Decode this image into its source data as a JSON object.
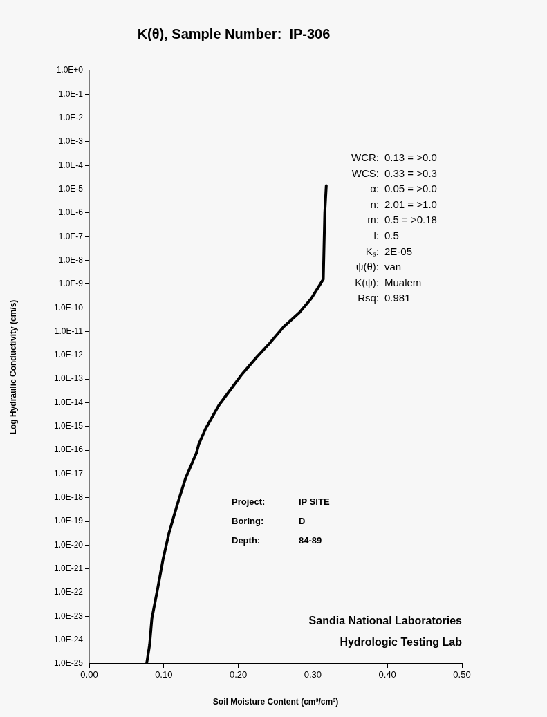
{
  "chart_data": {
    "type": "line",
    "title": "K(θ), Sample Number:  IP-306",
    "xlabel": "Soil Moisture Content (cm³/cm³)",
    "ylabel": "Log Hydraulic Conductivity (cm/s)",
    "x": [
      0.318,
      0.316,
      0.314,
      0.31,
      0.298,
      0.282,
      0.261,
      0.242,
      0.224,
      0.205,
      0.193,
      0.174,
      0.156,
      0.147,
      0.144,
      0.129,
      0.118,
      0.107,
      0.099,
      0.092,
      0.084,
      0.081,
      0.077
    ],
    "series": [
      {
        "color": "#000000",
        "values": [
          1.4e-05,
          1e-06,
          1.6e-09,
          1e-09,
          2.5e-10,
          6.3e-11,
          1.6e-11,
          3.2e-12,
          7.9e-13,
          1.6e-13,
          5e-14,
          7.9e-15,
          7.9e-16,
          1.8e-16,
          7.9e-17,
          6.3e-18,
          5e-19,
          3.2e-20,
          2.5e-21,
          1.6e-22,
          7.9e-24,
          6.3e-25,
          1e-25
        ]
      }
    ],
    "log": true,
    "grid": false,
    "legend": false,
    "marker": "none",
    "line_style": "solid",
    "xlim": [
      0,
      0.5
    ],
    "xticks": [
      {
        "value": 0,
        "label": "0.00"
      },
      {
        "value": 0.1,
        "label": "0.10"
      },
      {
        "value": 0.2,
        "label": "0.20"
      },
      {
        "value": 0.3,
        "label": "0.30"
      },
      {
        "value": 0.4,
        "label": "0.40"
      },
      {
        "value": 0.5,
        "label": "0.50"
      }
    ],
    "ylim": [
      1e-25,
      1
    ],
    "yticks": [
      {
        "value": 1,
        "label": "1.0E+0"
      },
      {
        "value": 0.1,
        "label": "1.0E-1"
      },
      {
        "value": 0.01,
        "label": "1.0E-2"
      },
      {
        "value": 0.001,
        "label": "1.0E-3"
      },
      {
        "value": 0.0001,
        "label": "1.0E-4"
      },
      {
        "value": 1e-05,
        "label": "1.0E-5"
      },
      {
        "value": 1e-06,
        "label": "1.0E-6"
      },
      {
        "value": 1e-07,
        "label": "1.0E-7"
      },
      {
        "value": 1e-08,
        "label": "1.0E-8"
      },
      {
        "value": 1e-09,
        "label": "1.0E-9"
      },
      {
        "value": 1e-10,
        "label": "1.0E-10"
      },
      {
        "value": 1e-11,
        "label": "1.0E-11"
      },
      {
        "value": 1e-12,
        "label": "1.0E-12"
      },
      {
        "value": 1e-13,
        "label": "1.0E-13"
      },
      {
        "value": 1e-14,
        "label": "1.0E-14"
      },
      {
        "value": 1e-15,
        "label": "1.0E-15"
      },
      {
        "value": 1e-16,
        "label": "1.0E-16"
      },
      {
        "value": 1e-17,
        "label": "1.0E-17"
      },
      {
        "value": 1e-18,
        "label": "1.0E-18"
      },
      {
        "value": 1e-19,
        "label": "1.0E-19"
      },
      {
        "value": 1e-20,
        "label": "1.0E-20"
      },
      {
        "value": 1e-21,
        "label": "1.0E-21"
      },
      {
        "value": 1e-22,
        "label": "1.0E-22"
      },
      {
        "value": 1e-23,
        "label": "1.0E-23"
      },
      {
        "value": 1e-24,
        "label": "1.0E-24"
      },
      {
        "value": 1e-25,
        "label": "1.0E-25"
      }
    ],
    "annotations": [
      "WCR: 0.13 = >0.0",
      "WCS: 0.33 = >0.3",
      "α: 0.05 = >0.0",
      "n: 2.01 = >1.0",
      "m: 0.5 = >0.18",
      "l: 0.5",
      "Kₛ: 2E-05",
      "ψ(θ): van",
      "K(ψ): Mualem",
      "Rsq: 0.981",
      "Project: IP SITE",
      "Boring: D",
      "Depth: 84-89",
      "Sandia National Laboratories",
      "Hydrologic Testing Lab"
    ]
  }
}
